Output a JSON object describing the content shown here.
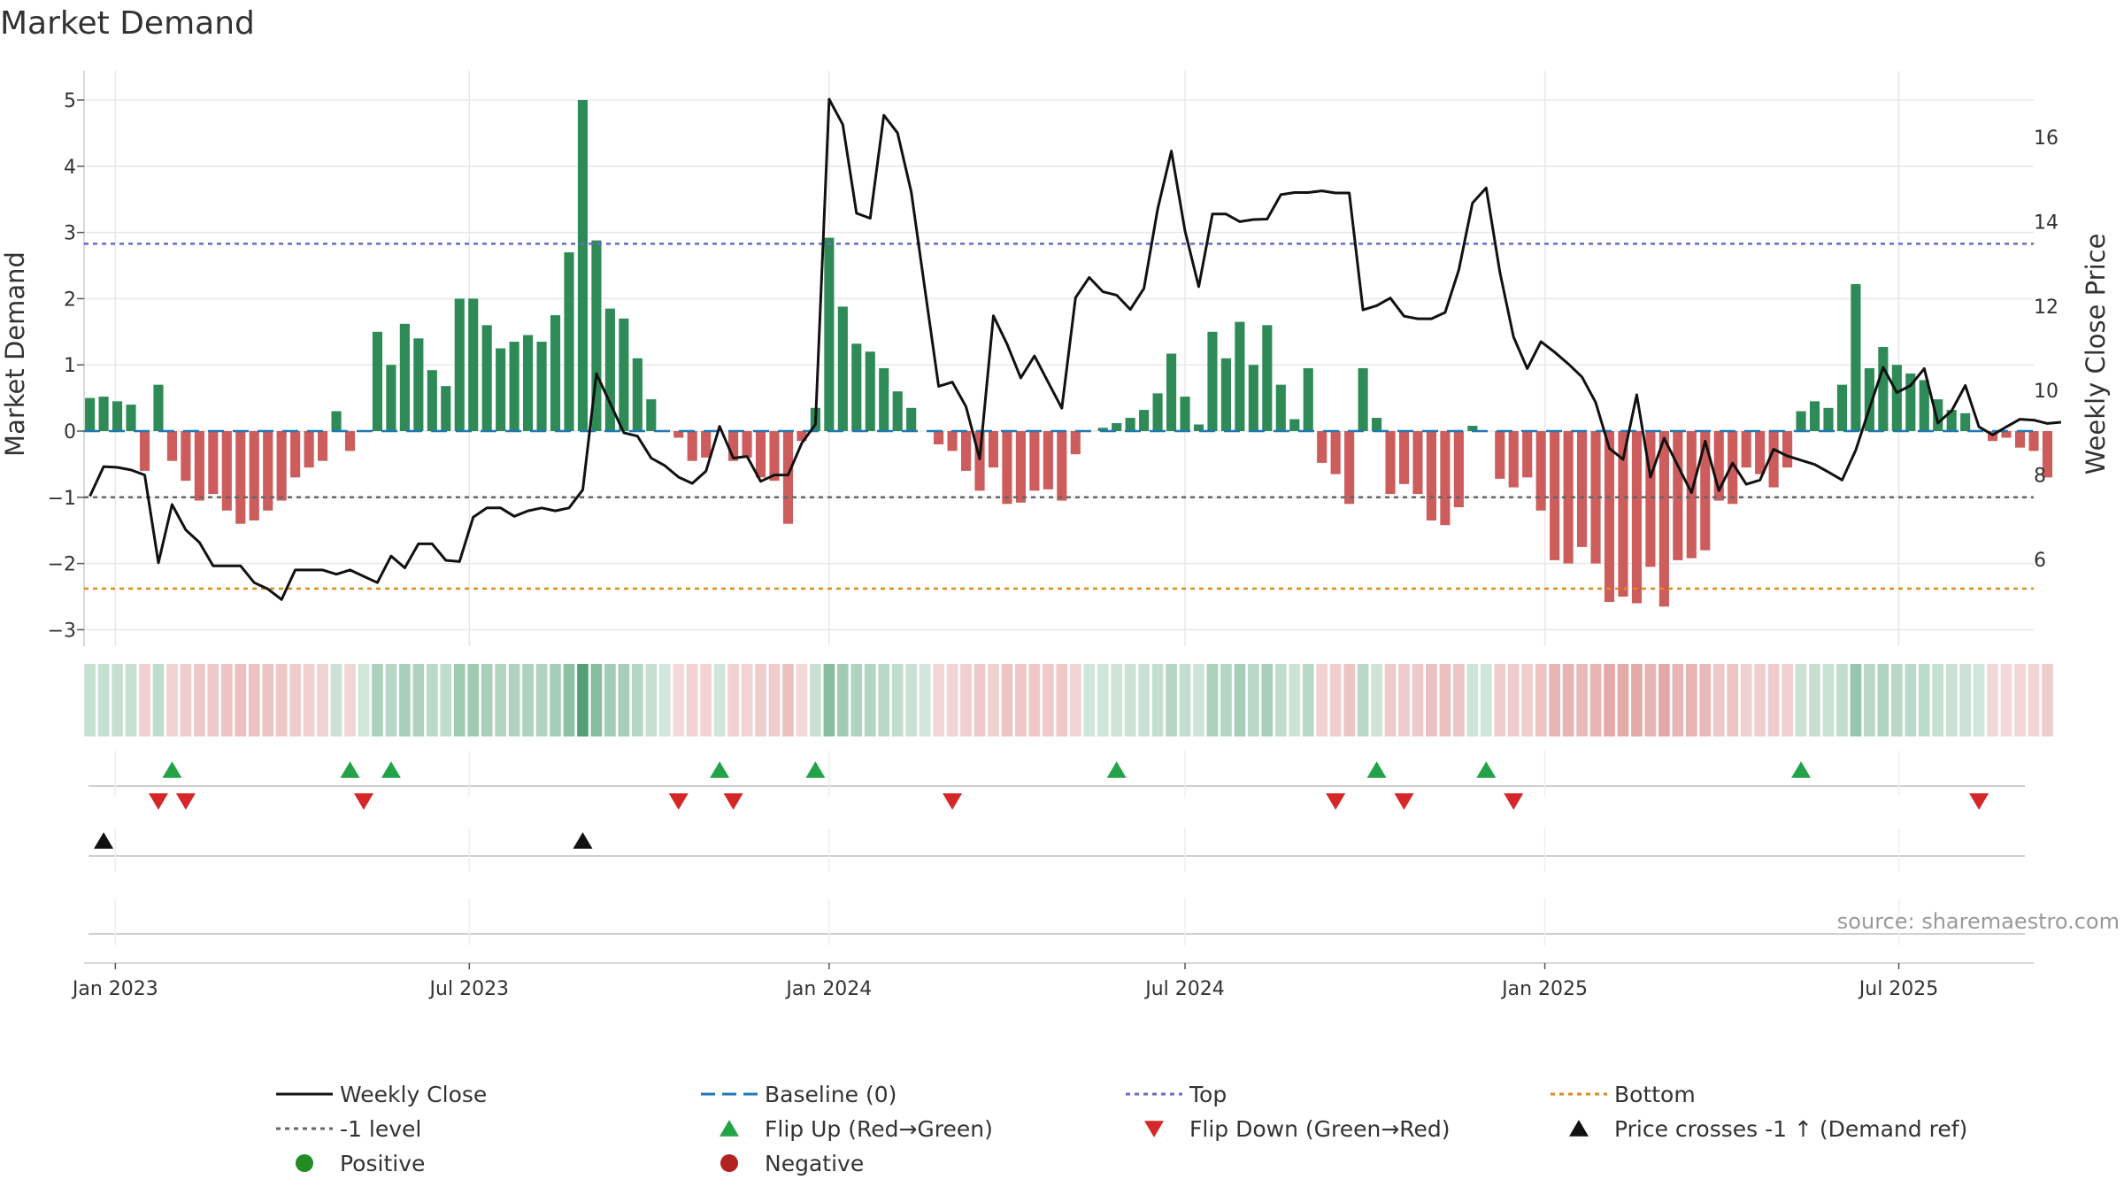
{
  "chart_data": {
    "type": "bar",
    "title": "Market Demand",
    "ylabel": "Market Demand",
    "y2label": "Weekly Close Price",
    "ylim": [
      -3.3,
      5.5
    ],
    "y2lim": [
      4.3,
      17.5
    ],
    "yticks": [
      5,
      4,
      3,
      2,
      1,
      0,
      -1,
      -2,
      -3
    ],
    "y2ticks": [
      16,
      14,
      12,
      10,
      8,
      6
    ],
    "y_tick_labels": [
      "5",
      "4",
      "3",
      "2",
      "1",
      "0",
      "−1",
      "−2",
      "−3"
    ],
    "y2_tick_labels": [
      "16",
      "14",
      "12",
      "10",
      "8",
      "6"
    ],
    "x_start": "2022-12-19",
    "week_days": 7,
    "x_range_days": [
      -3,
      994
    ],
    "x_ticks": [
      {
        "label": "Jan 2023",
        "day": 13
      },
      {
        "label": "Jul 2023",
        "day": 194
      },
      {
        "label": "Jan 2024",
        "day": 378
      },
      {
        "label": "Jul 2024",
        "day": 560
      },
      {
        "label": "Jan 2025",
        "day": 744
      },
      {
        "label": "Jul 2025",
        "day": 925
      }
    ],
    "demand": [
      0.5,
      0.52,
      0.45,
      0.4,
      -0.6,
      0.7,
      -0.45,
      -0.75,
      -1.05,
      -0.95,
      -1.2,
      -1.4,
      -1.35,
      -1.2,
      -1.05,
      -0.7,
      -0.55,
      -0.45,
      0.3,
      -0.3,
      0.0,
      1.5,
      1.0,
      1.62,
      1.4,
      0.92,
      0.68,
      2.0,
      2.0,
      1.6,
      1.25,
      1.35,
      1.45,
      1.35,
      1.75,
      2.7,
      5.0,
      2.88,
      1.85,
      1.7,
      1.1,
      0.48,
      0.0,
      -0.1,
      -0.45,
      -0.4,
      0.0,
      -0.45,
      -0.4,
      -0.7,
      -0.75,
      -1.4,
      -0.15,
      0.35,
      2.92,
      1.88,
      1.32,
      1.2,
      0.95,
      0.6,
      0.35,
      0.0,
      -0.2,
      -0.3,
      -0.6,
      -0.9,
      -0.55,
      -1.1,
      -1.08,
      -0.9,
      -0.88,
      -1.05,
      -0.35,
      0.0,
      0.05,
      0.12,
      0.2,
      0.32,
      0.57,
      1.17,
      0.52,
      0.1,
      1.5,
      1.1,
      1.65,
      1.0,
      1.6,
      0.7,
      0.18,
      0.95,
      -0.48,
      -0.65,
      -1.1,
      0.95,
      0.2,
      -0.95,
      -0.8,
      -0.95,
      -1.35,
      -1.42,
      -1.15,
      0.08,
      0.0,
      -0.72,
      -0.85,
      -0.7,
      -1.2,
      -1.95,
      -2.0,
      -1.75,
      -2.0,
      -2.58,
      -2.5,
      -2.6,
      -2.05,
      -2.65,
      -1.95,
      -1.92,
      -1.8,
      -1.05,
      -1.1,
      -0.55,
      -0.65,
      -0.85,
      -0.55,
      0.3,
      0.45,
      0.35,
      0.7,
      2.22,
      0.95,
      1.27,
      1.0,
      0.87,
      0.77,
      0.48,
      0.32,
      0.27,
      0.0,
      -0.15,
      -0.1,
      -0.25,
      -0.3,
      -0.7
    ],
    "close": [
      7.5,
      8.2,
      8.18,
      8.12,
      8.0,
      5.92,
      7.3,
      6.7,
      6.4,
      5.85,
      5.85,
      5.85,
      5.45,
      5.3,
      5.05,
      5.75,
      5.75,
      5.75,
      5.65,
      5.75,
      5.6,
      5.45,
      6.08,
      5.8,
      6.37,
      6.37,
      5.98,
      5.95,
      7.0,
      7.22,
      7.22,
      7.02,
      7.15,
      7.22,
      7.15,
      7.22,
      7.65,
      10.4,
      9.7,
      9.0,
      8.92,
      8.4,
      8.22,
      7.95,
      7.8,
      8.09,
      9.15,
      8.4,
      8.44,
      7.85,
      8.0,
      8.0,
      8.75,
      9.2,
      16.9,
      16.3,
      14.2,
      14.08,
      16.52,
      16.1,
      14.7,
      12.4,
      10.1,
      10.2,
      9.62,
      8.38,
      11.77,
      11.1,
      10.3,
      10.82,
      10.2,
      9.58,
      12.2,
      12.68,
      12.34,
      12.26,
      11.92,
      12.42,
      14.3,
      15.67,
      13.78,
      12.46,
      14.18,
      14.18,
      14.0,
      14.05,
      14.06,
      14.64,
      14.69,
      14.69,
      14.73,
      14.68,
      14.68,
      11.91,
      12.01,
      12.19,
      11.76,
      11.7,
      11.7,
      11.85,
      12.86,
      14.44,
      14.8,
      12.8,
      11.27,
      10.52,
      11.16,
      10.91,
      10.63,
      10.32,
      9.72,
      8.63,
      8.37,
      9.9,
      7.95,
      8.87,
      8.22,
      7.58,
      8.8,
      7.63,
      8.28,
      7.78,
      7.88,
      8.61,
      8.45,
      8.35,
      8.25,
      8.07,
      7.88,
      8.59,
      9.58,
      10.55,
      9.95,
      10.12,
      10.52,
      9.23,
      9.52,
      10.12,
      9.14,
      8.95,
      9.14,
      9.32,
      9.3,
      9.22,
      9.25
    ],
    "top": 2.83,
    "bottom": -2.38,
    "minus_one_level": -1,
    "baseline": 0,
    "flip_up_weeks": [
      6,
      19,
      22,
      46,
      53,
      75,
      94,
      102,
      125
    ],
    "flip_down_weeks": [
      5,
      7,
      20,
      43,
      47,
      63,
      91,
      96,
      104,
      138
    ],
    "price_cross_weeks": [
      1,
      36
    ],
    "legend": [
      {
        "key": "weekly-close",
        "label": "Weekly Close",
        "marker": "line"
      },
      {
        "key": "baseline",
        "label": "Baseline (0)",
        "marker": "dashed"
      },
      {
        "key": "top",
        "label": "Top",
        "marker": "dotted"
      },
      {
        "key": "bottom",
        "label": "Bottom",
        "marker": "dotted"
      },
      {
        "key": "minus-one",
        "label": "-1 level",
        "marker": "dotted"
      },
      {
        "key": "flip-up",
        "label": "Flip Up (Red→Green)",
        "marker": "triangle-up"
      },
      {
        "key": "flip-down",
        "label": "Flip Down (Green→Red)",
        "marker": "triangle-down"
      },
      {
        "key": "price-cross",
        "label": "Price crosses -1 ↑ (Demand ref)",
        "marker": "triangle-up"
      },
      {
        "key": "positive",
        "label": "Positive",
        "marker": "circle"
      },
      {
        "key": "negative",
        "label": "Negative",
        "marker": "circle"
      }
    ],
    "source": "source: sharemaestro.com"
  },
  "colors": {
    "positive": "#2e8b57",
    "negative": "#cd5c5c",
    "price_line": "#111111",
    "baseline": "#1f77b4",
    "top_line": "#6a6ac8",
    "minus_one_line": "#666666",
    "bottom_line": "#e08a1e",
    "flip_up": "#22a347",
    "flip_down": "#d62728",
    "price_cross": "#111111",
    "legend_positive": "#228b22",
    "legend_negative": "#b22222",
    "grid": "#e8e8e8",
    "axis": "#cccccc"
  }
}
